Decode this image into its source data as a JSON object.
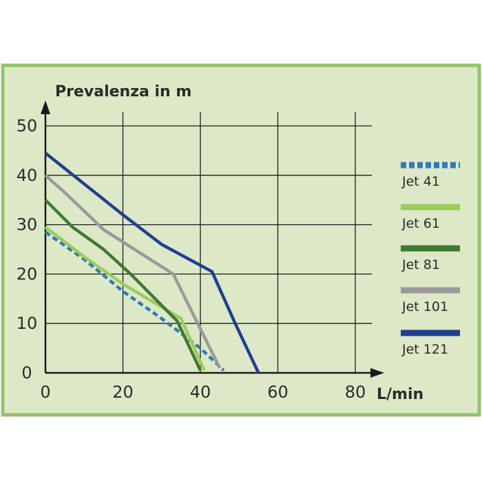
{
  "chart_data": {
    "type": "line",
    "title": "",
    "ylabel": "Prevalenza in  m",
    "xlabel": "L/min",
    "xlim": [
      0,
      80
    ],
    "ylim": [
      0,
      50
    ],
    "x_ticks": [
      "0",
      "20",
      "40",
      "60",
      "80"
    ],
    "y_ticks": [
      "0",
      "10",
      "20",
      "30",
      "40",
      "50"
    ],
    "grid": true,
    "legend_position": "right",
    "colors": {
      "background": "#dde8c6",
      "frame": "#93c36b",
      "grid": "#1a1a1a"
    },
    "series": [
      {
        "name": "Jet 41",
        "color": "#2e7bbf",
        "dashed": true,
        "points": [
          [
            0,
            28.5
          ],
          [
            10,
            23
          ],
          [
            20,
            16.5
          ],
          [
            30,
            11
          ],
          [
            40,
            5
          ],
          [
            46,
            0.5
          ]
        ]
      },
      {
        "name": "Jet 61",
        "color": "#9ccc5c",
        "dashed": false,
        "points": [
          [
            0,
            29.5
          ],
          [
            10,
            23.5
          ],
          [
            20,
            18
          ],
          [
            35,
            11
          ],
          [
            41,
            0.5
          ]
        ]
      },
      {
        "name": "Jet 81",
        "color": "#3e7b32",
        "dashed": false,
        "points": [
          [
            0,
            35
          ],
          [
            7,
            29.5
          ],
          [
            15,
            25
          ],
          [
            22,
            20
          ],
          [
            34,
            10.5
          ],
          [
            40,
            0.5
          ]
        ]
      },
      {
        "name": "Jet 101",
        "color": "#9a9a9a",
        "dashed": false,
        "points": [
          [
            0,
            40
          ],
          [
            5,
            36.5
          ],
          [
            15,
            29
          ],
          [
            25,
            24
          ],
          [
            33,
            20
          ],
          [
            45,
            1
          ]
        ]
      },
      {
        "name": "Jet 121",
        "color": "#203f93",
        "dashed": false,
        "points": [
          [
            0,
            44.5
          ],
          [
            8,
            39.5
          ],
          [
            20,
            32
          ],
          [
            30,
            26
          ],
          [
            43,
            20.5
          ],
          [
            49,
            10
          ],
          [
            55,
            0
          ]
        ]
      }
    ]
  }
}
